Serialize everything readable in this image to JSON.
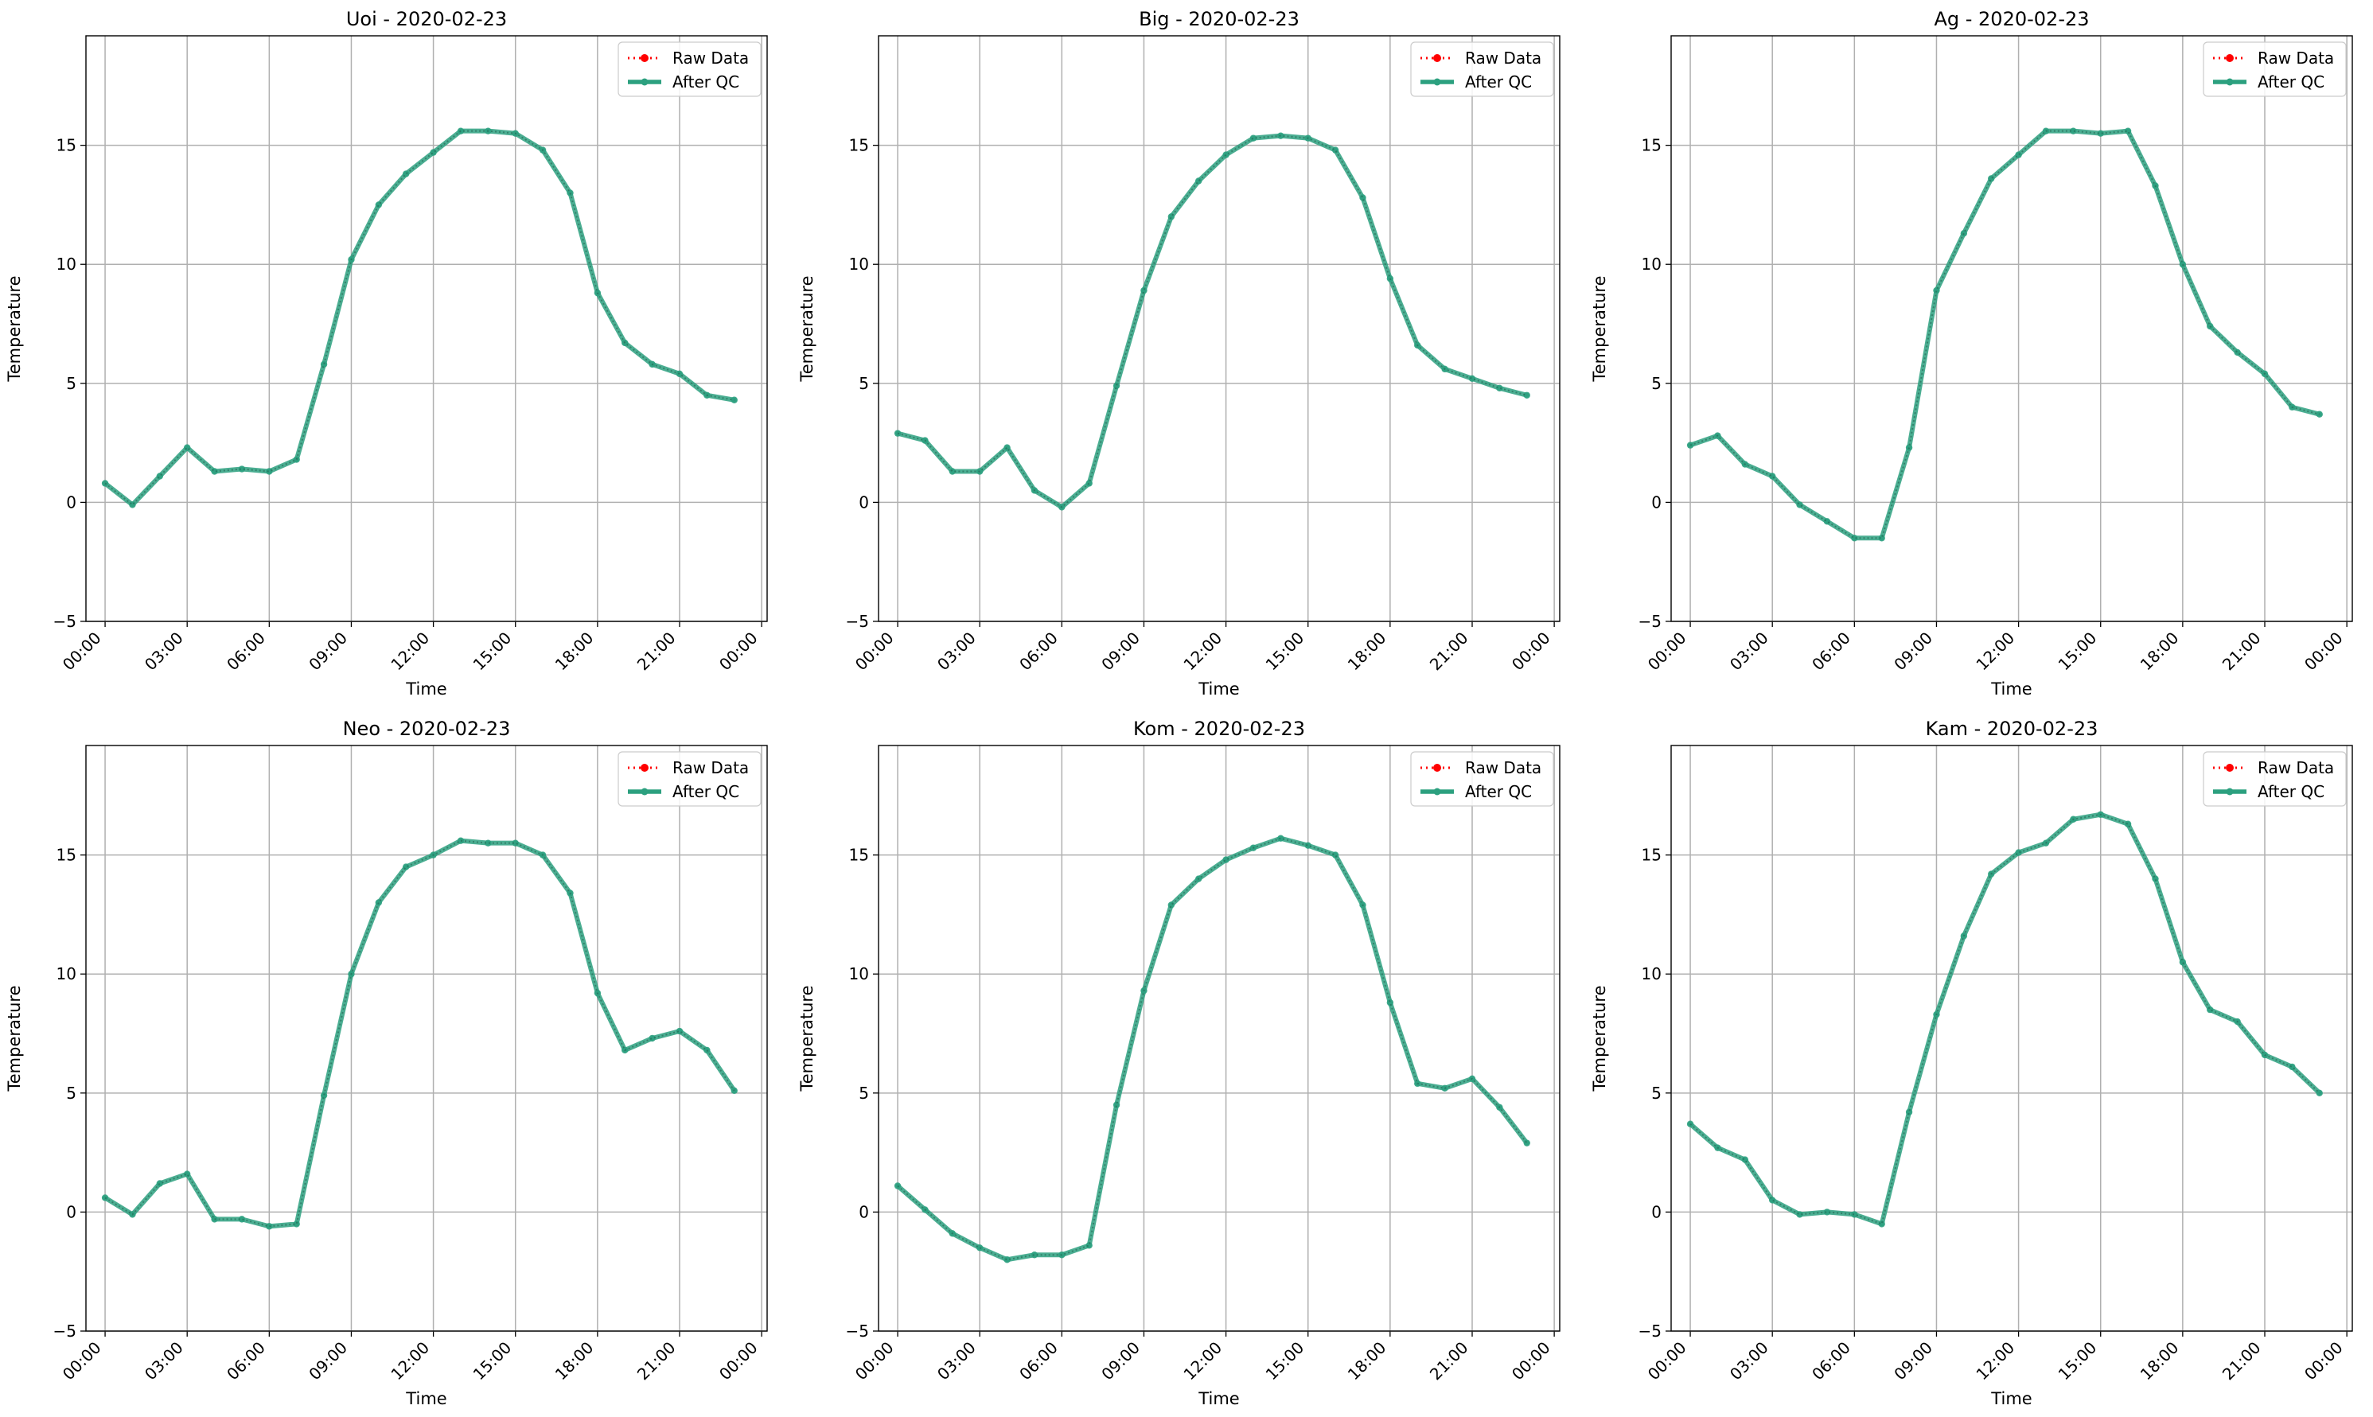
{
  "chart_data": [
    {
      "type": "line",
      "title": "Uoi - 2020-02-23",
      "xlabel": "Time",
      "ylabel": "Temperature",
      "x_ticks": [
        "00:00",
        "03:00",
        "06:00",
        "09:00",
        "12:00",
        "15:00",
        "18:00",
        "21:00",
        "00:00"
      ],
      "y_ticks": [
        "−5",
        "0",
        "5",
        "10",
        "15"
      ],
      "ylim": [
        -5,
        19.6
      ],
      "xlim_hours": [
        -0.7,
        24.2
      ],
      "grid": true,
      "legend_position": "top-right",
      "x": [
        0,
        1,
        2,
        3,
        4,
        5,
        6,
        7,
        8,
        9,
        10,
        11,
        12,
        13,
        14,
        15,
        16,
        17,
        18,
        19,
        20,
        21,
        22,
        23
      ],
      "series": [
        {
          "name": "Raw Data",
          "color": "#ff0000",
          "style": "dotted-markers",
          "values": [
            0.8,
            -0.1,
            1.1,
            2.3,
            1.3,
            1.4,
            1.3,
            1.8,
            5.8,
            10.2,
            12.5,
            13.8,
            14.7,
            15.6,
            15.6,
            15.5,
            14.8,
            13.0,
            8.8,
            6.7,
            5.8,
            5.4,
            4.5,
            4.3
          ]
        },
        {
          "name": "After QC",
          "color": "#2ca07f",
          "style": "solid-markers",
          "values": [
            0.8,
            -0.1,
            1.1,
            2.3,
            1.3,
            1.4,
            1.3,
            1.8,
            5.8,
            10.2,
            12.5,
            13.8,
            14.7,
            15.6,
            15.6,
            15.5,
            14.8,
            13.0,
            8.8,
            6.7,
            5.8,
            5.4,
            4.5,
            4.3
          ]
        }
      ]
    },
    {
      "type": "line",
      "title": "Big - 2020-02-23",
      "xlabel": "Time",
      "ylabel": "Temperature",
      "x_ticks": [
        "00:00",
        "03:00",
        "06:00",
        "09:00",
        "12:00",
        "15:00",
        "18:00",
        "21:00",
        "00:00"
      ],
      "y_ticks": [
        "−5",
        "0",
        "5",
        "10",
        "15"
      ],
      "ylim": [
        -5,
        19.6
      ],
      "xlim_hours": [
        -0.7,
        24.2
      ],
      "grid": true,
      "legend_position": "top-right",
      "x": [
        0,
        1,
        2,
        3,
        4,
        5,
        6,
        7,
        8,
        9,
        10,
        11,
        12,
        13,
        14,
        15,
        16,
        17,
        18,
        19,
        20,
        21,
        22,
        23
      ],
      "series": [
        {
          "name": "Raw Data",
          "color": "#ff0000",
          "style": "dotted-markers",
          "values": [
            2.9,
            2.6,
            1.3,
            1.3,
            2.3,
            0.5,
            -0.2,
            0.8,
            4.9,
            8.9,
            12.0,
            13.5,
            14.6,
            15.3,
            15.4,
            15.3,
            14.8,
            12.8,
            9.4,
            6.6,
            5.6,
            5.2,
            4.8,
            4.5
          ]
        },
        {
          "name": "After QC",
          "color": "#2ca07f",
          "style": "solid-markers",
          "values": [
            2.9,
            2.6,
            1.3,
            1.3,
            2.3,
            0.5,
            -0.2,
            0.8,
            4.9,
            8.9,
            12.0,
            13.5,
            14.6,
            15.3,
            15.4,
            15.3,
            14.8,
            12.8,
            9.4,
            6.6,
            5.6,
            5.2,
            4.8,
            4.5
          ]
        }
      ]
    },
    {
      "type": "line",
      "title": "Ag - 2020-02-23",
      "xlabel": "Time",
      "ylabel": "Temperature",
      "x_ticks": [
        "00:00",
        "03:00",
        "06:00",
        "09:00",
        "12:00",
        "15:00",
        "18:00",
        "21:00",
        "00:00"
      ],
      "y_ticks": [
        "−5",
        "0",
        "5",
        "10",
        "15"
      ],
      "ylim": [
        -5,
        19.6
      ],
      "xlim_hours": [
        -0.7,
        24.2
      ],
      "grid": true,
      "legend_position": "top-right",
      "x": [
        0,
        1,
        2,
        3,
        4,
        5,
        6,
        7,
        8,
        9,
        10,
        11,
        12,
        13,
        14,
        15,
        16,
        17,
        18,
        19,
        20,
        21,
        22,
        23
      ],
      "series": [
        {
          "name": "Raw Data",
          "color": "#ff0000",
          "style": "dotted-markers",
          "values": [
            2.4,
            2.8,
            1.6,
            1.1,
            -0.1,
            -0.8,
            -1.5,
            -1.5,
            2.3,
            8.9,
            11.3,
            13.6,
            14.6,
            15.6,
            15.6,
            15.5,
            15.6,
            13.3,
            10.0,
            7.4,
            6.3,
            5.4,
            4.0,
            3.7
          ]
        },
        {
          "name": "After QC",
          "color": "#2ca07f",
          "style": "solid-markers",
          "values": [
            2.4,
            2.8,
            1.6,
            1.1,
            -0.1,
            -0.8,
            -1.5,
            -1.5,
            2.3,
            8.9,
            11.3,
            13.6,
            14.6,
            15.6,
            15.6,
            15.5,
            15.6,
            13.3,
            10.0,
            7.4,
            6.3,
            5.4,
            4.0,
            3.7
          ]
        }
      ]
    },
    {
      "type": "line",
      "title": "Neo - 2020-02-23",
      "xlabel": "Time",
      "ylabel": "Temperature",
      "x_ticks": [
        "00:00",
        "03:00",
        "06:00",
        "09:00",
        "12:00",
        "15:00",
        "18:00",
        "21:00",
        "00:00"
      ],
      "y_ticks": [
        "−5",
        "0",
        "5",
        "10",
        "15"
      ],
      "ylim": [
        -5,
        19.6
      ],
      "xlim_hours": [
        -0.7,
        24.2
      ],
      "grid": true,
      "legend_position": "top-right",
      "x": [
        0,
        1,
        2,
        3,
        4,
        5,
        6,
        7,
        8,
        9,
        10,
        11,
        12,
        13,
        14,
        15,
        16,
        17,
        18,
        19,
        20,
        21,
        22,
        23
      ],
      "series": [
        {
          "name": "Raw Data",
          "color": "#ff0000",
          "style": "dotted-markers",
          "values": [
            0.6,
            -0.1,
            1.2,
            1.6,
            -0.3,
            -0.3,
            -0.6,
            -0.5,
            4.9,
            10.0,
            13.0,
            14.5,
            15.0,
            15.6,
            15.5,
            15.5,
            15.0,
            13.4,
            9.2,
            6.8,
            7.3,
            7.6,
            6.8,
            5.1
          ]
        },
        {
          "name": "After QC",
          "color": "#2ca07f",
          "style": "solid-markers",
          "values": [
            0.6,
            -0.1,
            1.2,
            1.6,
            -0.3,
            -0.3,
            -0.6,
            -0.5,
            4.9,
            10.0,
            13.0,
            14.5,
            15.0,
            15.6,
            15.5,
            15.5,
            15.0,
            13.4,
            9.2,
            6.8,
            7.3,
            7.6,
            6.8,
            5.1
          ]
        }
      ]
    },
    {
      "type": "line",
      "title": "Kom - 2020-02-23",
      "xlabel": "Time",
      "ylabel": "Temperature",
      "x_ticks": [
        "00:00",
        "03:00",
        "06:00",
        "09:00",
        "12:00",
        "15:00",
        "18:00",
        "21:00",
        "00:00"
      ],
      "y_ticks": [
        "−5",
        "0",
        "5",
        "10",
        "15"
      ],
      "ylim": [
        -5,
        19.6
      ],
      "xlim_hours": [
        -0.7,
        24.2
      ],
      "grid": true,
      "legend_position": "top-right",
      "x": [
        0,
        1,
        2,
        3,
        4,
        5,
        6,
        7,
        8,
        9,
        10,
        11,
        12,
        13,
        14,
        15,
        16,
        17,
        18,
        19,
        20,
        21,
        22,
        23
      ],
      "series": [
        {
          "name": "Raw Data",
          "color": "#ff0000",
          "style": "dotted-markers",
          "values": [
            1.1,
            0.1,
            -0.9,
            -1.5,
            -2.0,
            -1.8,
            -1.8,
            -1.4,
            4.5,
            9.3,
            12.9,
            14.0,
            14.8,
            15.3,
            15.7,
            15.4,
            15.0,
            12.9,
            8.8,
            5.4,
            5.2,
            5.6,
            4.4,
            2.9
          ]
        },
        {
          "name": "After QC",
          "color": "#2ca07f",
          "style": "solid-markers",
          "values": [
            1.1,
            0.1,
            -0.9,
            -1.5,
            -2.0,
            -1.8,
            -1.8,
            -1.4,
            4.5,
            9.3,
            12.9,
            14.0,
            14.8,
            15.3,
            15.7,
            15.4,
            15.0,
            12.9,
            8.8,
            5.4,
            5.2,
            5.6,
            4.4,
            2.9
          ]
        }
      ]
    },
    {
      "type": "line",
      "title": "Kam - 2020-02-23",
      "xlabel": "Time",
      "ylabel": "Temperature",
      "x_ticks": [
        "00:00",
        "03:00",
        "06:00",
        "09:00",
        "12:00",
        "15:00",
        "18:00",
        "21:00",
        "00:00"
      ],
      "y_ticks": [
        "−5",
        "0",
        "5",
        "10",
        "15"
      ],
      "ylim": [
        -5,
        19.6
      ],
      "xlim_hours": [
        -0.7,
        24.2
      ],
      "grid": true,
      "legend_position": "top-right",
      "x": [
        0,
        1,
        2,
        3,
        4,
        5,
        6,
        7,
        8,
        9,
        10,
        11,
        12,
        13,
        14,
        15,
        16,
        17,
        18,
        19,
        20,
        21,
        22,
        23
      ],
      "series": [
        {
          "name": "Raw Data",
          "color": "#ff0000",
          "style": "dotted-markers",
          "values": [
            3.7,
            2.7,
            2.2,
            0.5,
            -0.1,
            0.0,
            -0.1,
            -0.5,
            4.2,
            8.3,
            11.6,
            14.2,
            15.1,
            15.5,
            16.5,
            16.7,
            16.3,
            14.0,
            10.5,
            8.5,
            8.0,
            6.6,
            6.1,
            5.0
          ]
        },
        {
          "name": "After QC",
          "color": "#2ca07f",
          "style": "solid-markers",
          "values": [
            3.7,
            2.7,
            2.2,
            0.5,
            -0.1,
            0.0,
            -0.1,
            -0.5,
            4.2,
            8.3,
            11.6,
            14.2,
            15.1,
            15.5,
            16.5,
            16.7,
            16.3,
            14.0,
            10.5,
            8.5,
            8.0,
            6.6,
            6.1,
            5.0
          ]
        }
      ]
    }
  ]
}
